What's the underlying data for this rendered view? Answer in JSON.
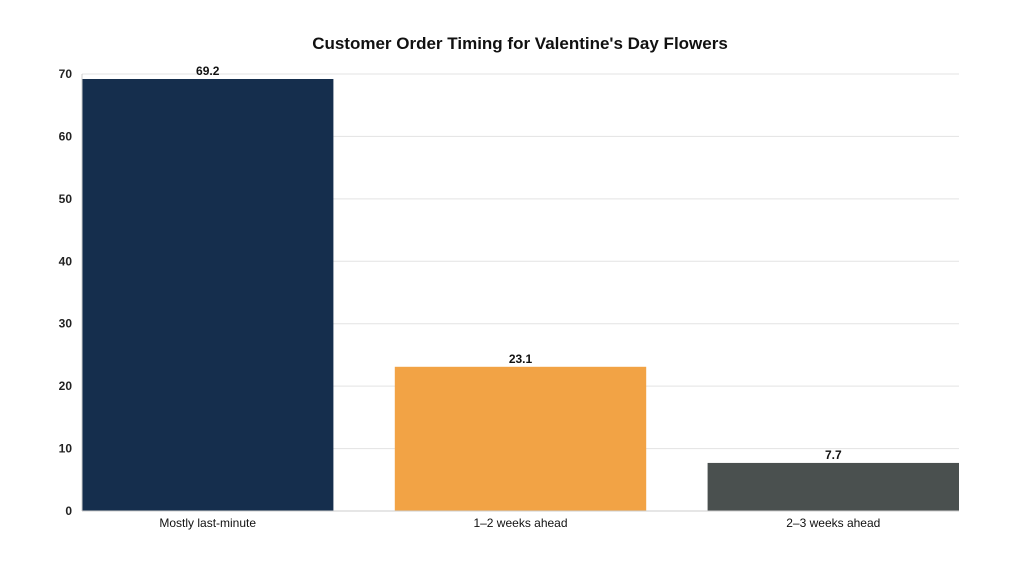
{
  "chart_data": {
    "type": "bar",
    "title": "Customer Order Timing for Valentine's Day Flowers",
    "xlabel": "",
    "ylabel": "",
    "categories": [
      "Mostly last-minute",
      "1–2 weeks ahead",
      "2–3 weeks ahead"
    ],
    "values": [
      69.2,
      23.1,
      7.7
    ],
    "data_labels": [
      "69.2",
      "23.1",
      "7.7"
    ],
    "colors": [
      "#152e4d",
      "#f2a345",
      "#4a504f"
    ],
    "ylim": [
      0,
      70
    ],
    "yticks": [
      0,
      10,
      20,
      30,
      40,
      50,
      60,
      70
    ],
    "grid": true,
    "legend": "none"
  }
}
